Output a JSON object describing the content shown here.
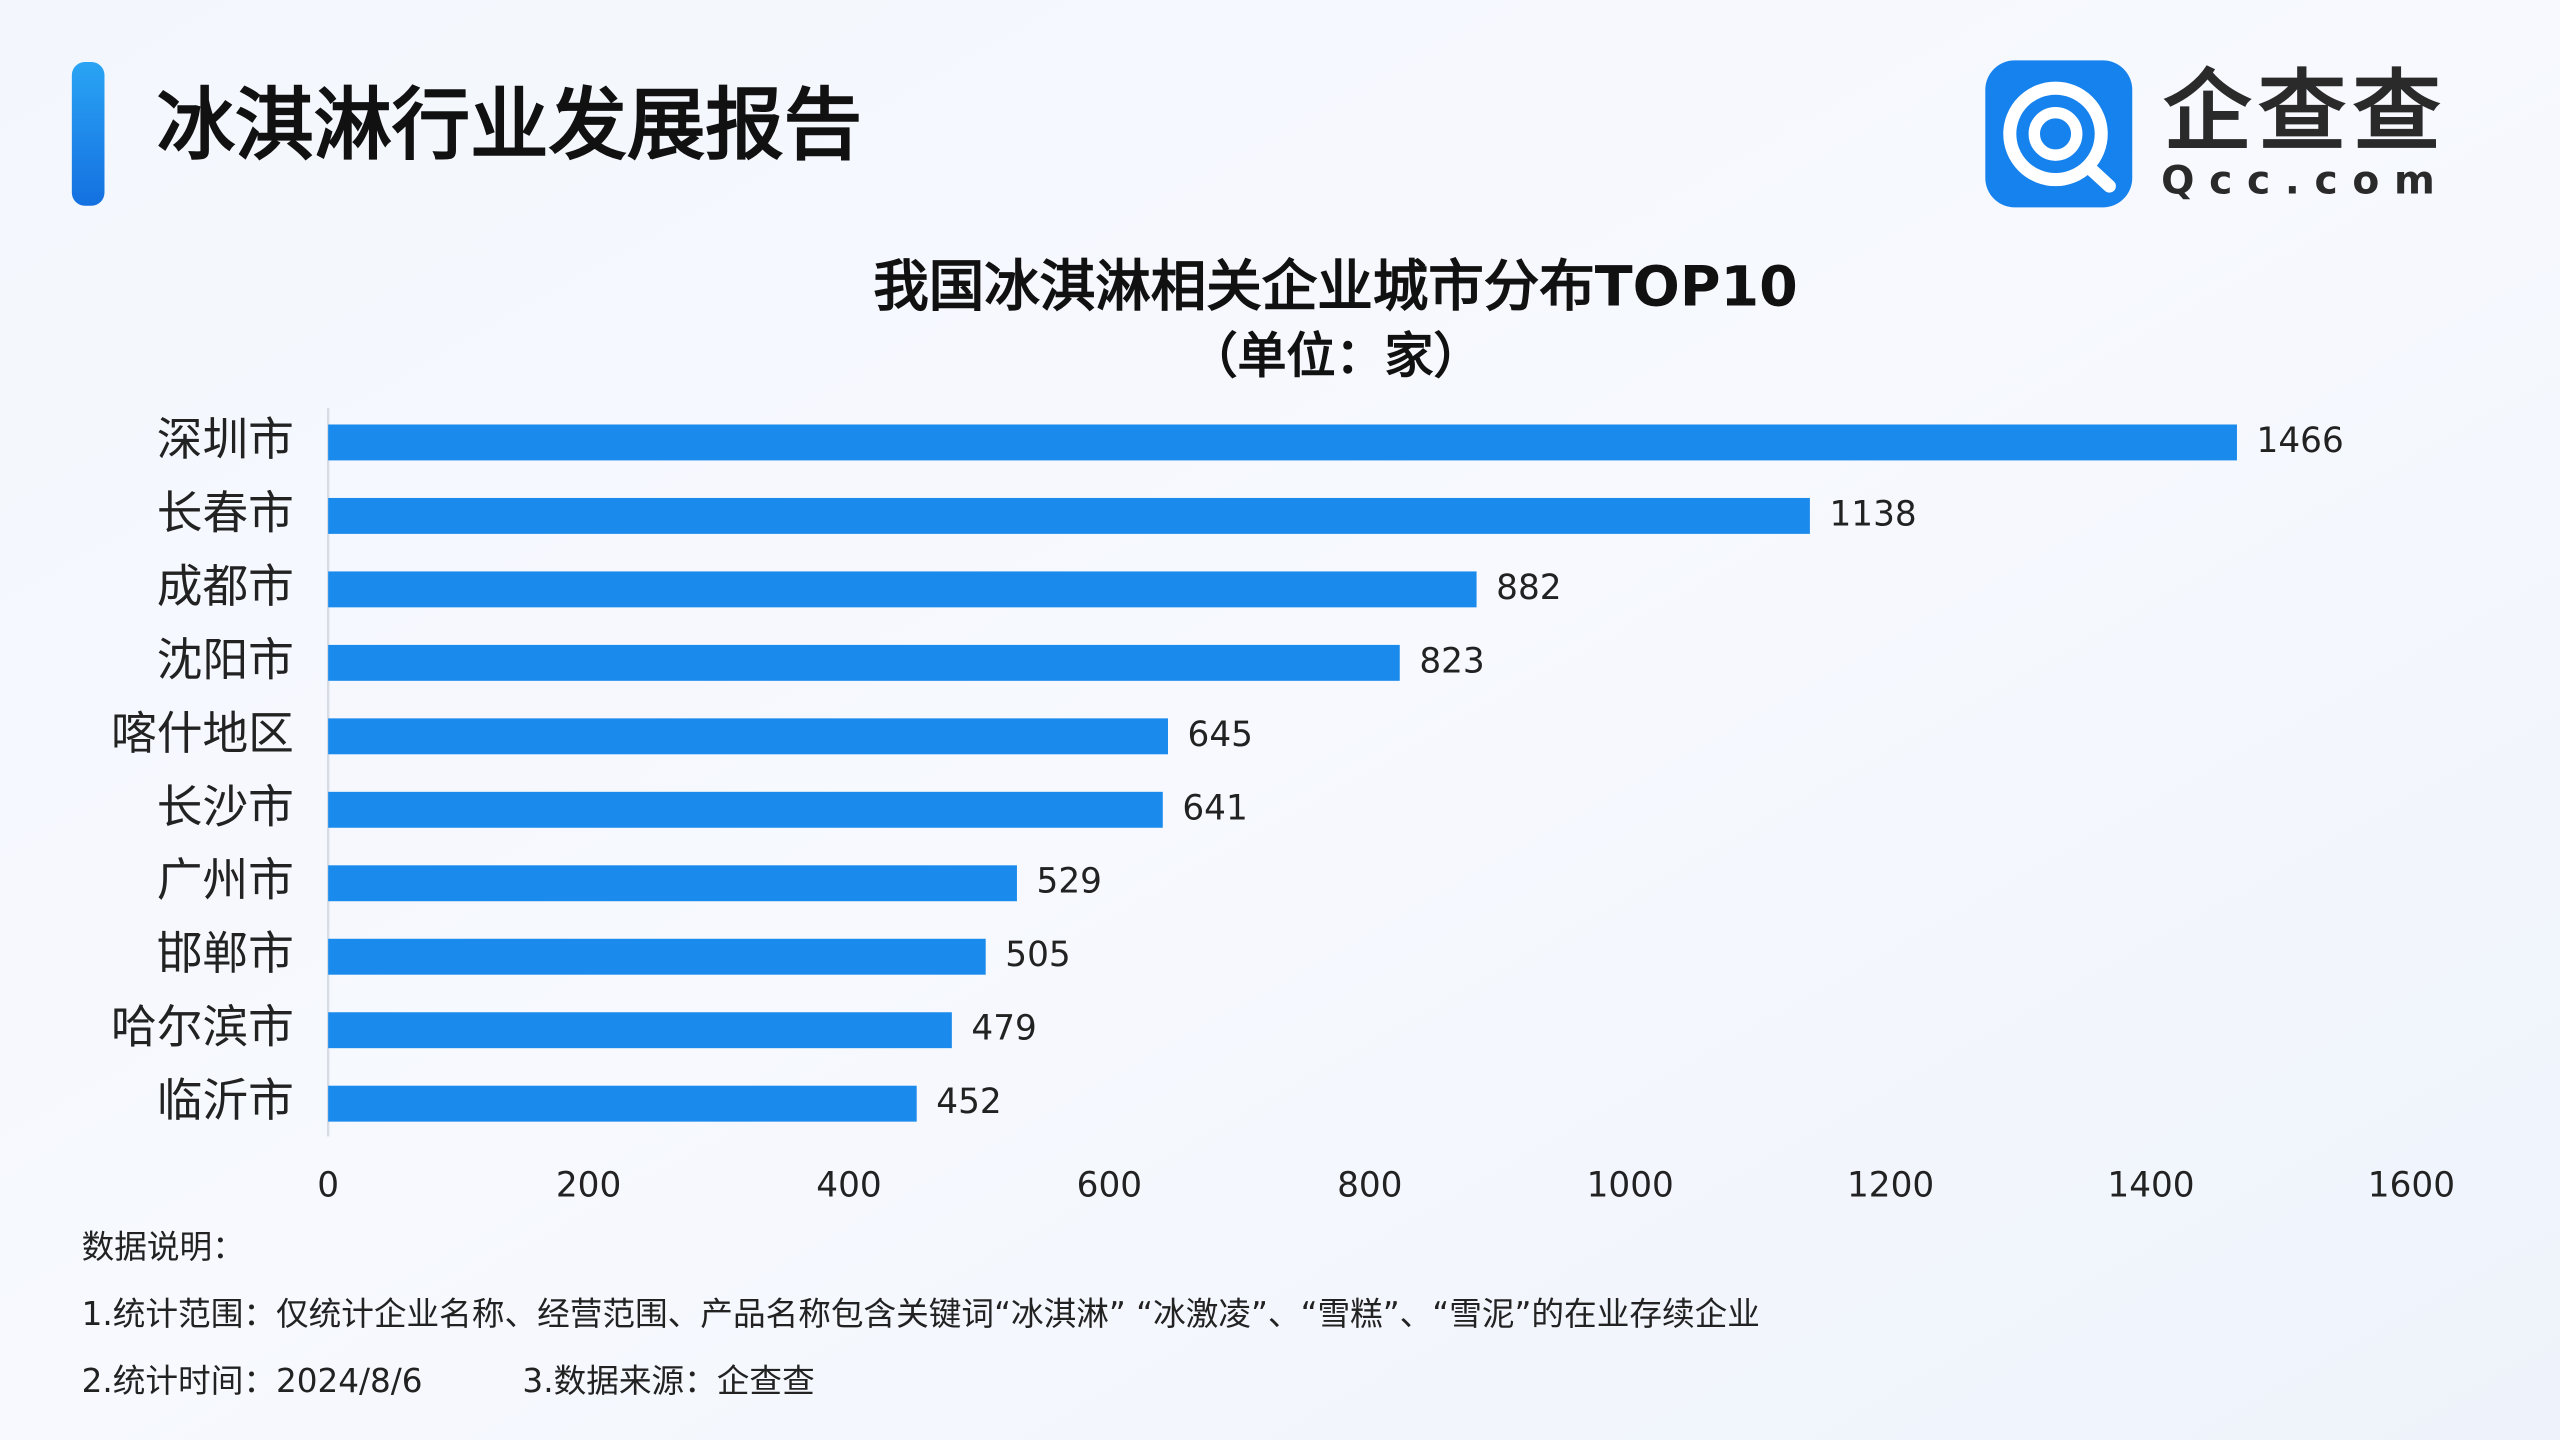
{
  "header": {
    "title": "冰淇淋行业发展报告",
    "logo": {
      "name": "企查查",
      "domain": "Qcc.com"
    }
  },
  "chart_data": {
    "type": "bar",
    "orientation": "horizontal",
    "title": "我国冰淇淋相关企业城市分布TOP10",
    "subtitle": "（单位：家）",
    "categories": [
      "深圳市",
      "长春市",
      "成都市",
      "沈阳市",
      "喀什地区",
      "长沙市",
      "广州市",
      "邯郸市",
      "哈尔滨市",
      "临沂市"
    ],
    "values": [
      1466,
      1138,
      882,
      823,
      645,
      641,
      529,
      505,
      479,
      452
    ],
    "color": "#1a8aec",
    "xlim": [
      0,
      1600
    ],
    "xticks": [
      0,
      200,
      400,
      600,
      800,
      1000,
      1200,
      1400,
      1600
    ],
    "grid": false
  },
  "notes": {
    "heading": "数据说明：",
    "scope": "1.统计范围：仅统计企业名称、经营范围、产品名称包含关键词“冰淇淋” “冰激凌”、“雪糕”、“雪泥”的在业存续企业",
    "time": "2.统计时间：2024/8/6",
    "source": "3.数据来源：企查查"
  }
}
